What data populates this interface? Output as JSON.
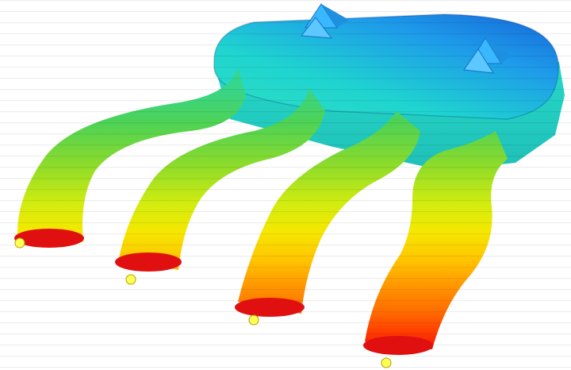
{
  "scene": {
    "subject": "intake-manifold-fea-contour",
    "background": "#ffffff",
    "contour_colors": [
      "#1565d8",
      "#1e9bea",
      "#1fd4d0",
      "#2ee0c0",
      "#36d68c",
      "#4fd254",
      "#8edc2a",
      "#d0ec10",
      "#f5e800",
      "#ffc400",
      "#ff9600",
      "#ff6a00",
      "#ff3a00",
      "#f01010"
    ],
    "runner_count": 4,
    "constraint_marker_color": "#ffff55",
    "load_marker_color": "#3ab8ff",
    "icons": [
      "constraint-point-icon",
      "load-arrow-icon"
    ]
  }
}
